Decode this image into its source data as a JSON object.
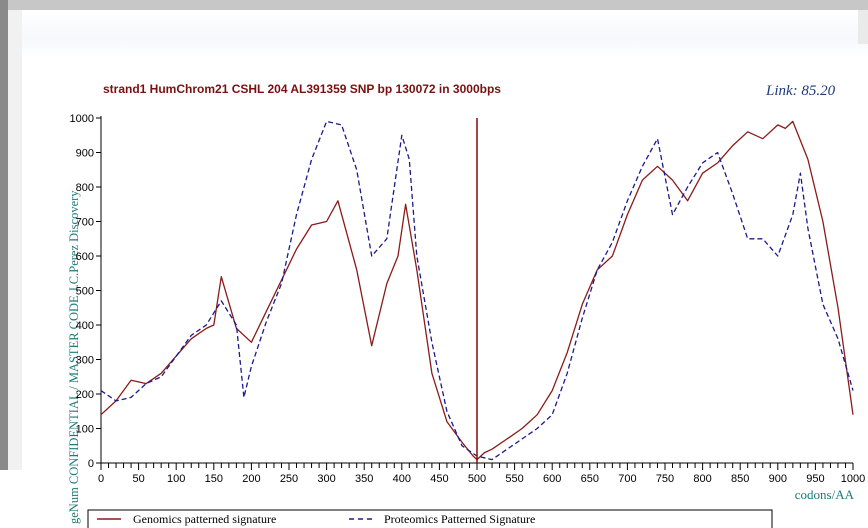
{
  "chart_data": {
    "type": "line",
    "title": "strand1 HumChrom21 CSHL 204 AL391359  SNP bp 130072  in 3000bps",
    "link_label": "Link: 85.20",
    "ylabel": "geNum CONFIDENTIAL / MASTER CODE J.C.Perez Discovery",
    "xlabel": "codons/AA",
    "xlim": [
      0,
      1000
    ],
    "ylim": [
      0,
      1000
    ],
    "x_ticks": [
      0,
      50,
      100,
      150,
      200,
      250,
      300,
      350,
      400,
      450,
      500,
      550,
      600,
      650,
      700,
      750,
      800,
      850,
      900,
      950,
      1000
    ],
    "y_ticks": [
      0,
      100,
      200,
      300,
      400,
      500,
      600,
      700,
      800,
      900,
      1000
    ],
    "legend_position": "bottom-left",
    "marker_line": {
      "x": 500,
      "color": "#8b1a1a"
    },
    "series": [
      {
        "name": "Genomics patterned signature",
        "color": "#8b1a1a",
        "style": "solid",
        "x": [
          0,
          20,
          40,
          60,
          80,
          100,
          120,
          140,
          150,
          160,
          180,
          200,
          220,
          240,
          260,
          280,
          300,
          315,
          330,
          340,
          350,
          360,
          380,
          395,
          405,
          420,
          440,
          460,
          480,
          495,
          500,
          510,
          520,
          540,
          560,
          580,
          600,
          620,
          640,
          660,
          680,
          700,
          720,
          740,
          760,
          780,
          800,
          820,
          840,
          860,
          880,
          900,
          910,
          920,
          940,
          960,
          980,
          1000
        ],
        "values": [
          140,
          180,
          240,
          230,
          260,
          310,
          360,
          390,
          400,
          540,
          390,
          350,
          440,
          530,
          620,
          690,
          700,
          760,
          640,
          560,
          450,
          340,
          520,
          600,
          750,
          560,
          260,
          120,
          60,
          20,
          10,
          30,
          40,
          70,
          100,
          140,
          210,
          320,
          460,
          560,
          600,
          720,
          820,
          860,
          820,
          760,
          840,
          870,
          920,
          960,
          940,
          980,
          970,
          990,
          880,
          700,
          450,
          140
        ]
      },
      {
        "name": "Proteomics Patterned Signature",
        "color": "#1a1a8c",
        "style": "dashed",
        "x": [
          0,
          20,
          40,
          60,
          80,
          100,
          120,
          140,
          160,
          180,
          190,
          200,
          220,
          240,
          260,
          280,
          300,
          320,
          340,
          360,
          380,
          400,
          410,
          420,
          440,
          460,
          480,
          500,
          520,
          540,
          560,
          580,
          600,
          620,
          640,
          660,
          680,
          700,
          720,
          740,
          760,
          780,
          800,
          820,
          840,
          860,
          880,
          900,
          920,
          930,
          940,
          960,
          980,
          1000
        ],
        "values": [
          210,
          180,
          190,
          230,
          250,
          310,
          370,
          400,
          470,
          400,
          190,
          280,
          410,
          520,
          720,
          880,
          990,
          980,
          850,
          600,
          650,
          950,
          880,
          600,
          350,
          150,
          50,
          20,
          10,
          40,
          70,
          100,
          140,
          260,
          420,
          560,
          640,
          760,
          860,
          940,
          720,
          800,
          870,
          900,
          780,
          650,
          650,
          600,
          720,
          840,
          680,
          460,
          360,
          210
        ]
      }
    ]
  }
}
